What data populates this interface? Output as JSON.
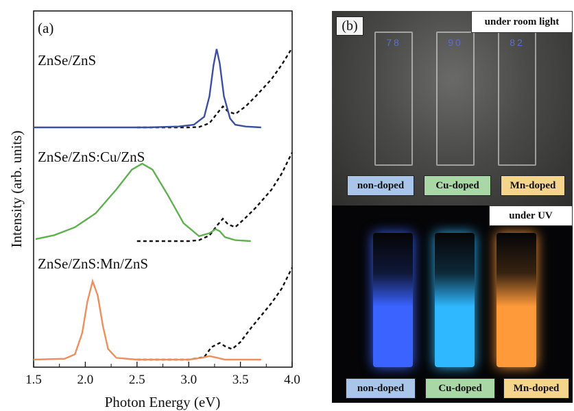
{
  "chart_data": {
    "type": "line",
    "panel_label": "(a)",
    "xlabel": "Photon Energy (eV)",
    "ylabel": "Intensity (arb. units)",
    "xlim": [
      1.5,
      4.0
    ],
    "x_ticks": [
      "1.5",
      "2.0",
      "2.5",
      "3.0",
      "3.5",
      "4.0"
    ],
    "grid": false,
    "samples": [
      {
        "name": "ZnSe/ZnS",
        "color": "#3b4fa3",
        "emission": {
          "x": [
            1.5,
            2.6,
            2.9,
            3.05,
            3.15,
            3.2,
            3.24,
            3.27,
            3.3,
            3.34,
            3.4,
            3.45,
            3.55,
            3.7
          ],
          "y": [
            0,
            0,
            0.01,
            0.03,
            0.12,
            0.35,
            0.7,
            0.88,
            0.72,
            0.35,
            0.1,
            0.03,
            0.01,
            0
          ]
        },
        "absorption": {
          "x": [
            2.5,
            3.0,
            3.1,
            3.2,
            3.28,
            3.33,
            3.38,
            3.45,
            3.55,
            3.65,
            3.8,
            3.9,
            4.0
          ],
          "y": [
            0,
            0,
            0.01,
            0.1,
            0.35,
            0.5,
            0.38,
            0.32,
            0.5,
            0.75,
            1.15,
            1.5,
            1.9
          ]
        }
      },
      {
        "name": "ZnSe/ZnS:Cu/ZnS",
        "color": "#5fb14f",
        "emission": {
          "x": [
            1.52,
            1.7,
            1.9,
            2.1,
            2.3,
            2.45,
            2.55,
            2.65,
            2.8,
            2.95,
            3.1,
            3.2,
            3.26,
            3.3,
            3.35,
            3.45,
            3.6
          ],
          "y": [
            0.02,
            0.06,
            0.14,
            0.28,
            0.52,
            0.72,
            0.78,
            0.72,
            0.46,
            0.18,
            0.05,
            0.08,
            0.12,
            0.1,
            0.04,
            0.01,
            0.0
          ]
        },
        "absorption": {
          "x": [
            2.5,
            3.0,
            3.1,
            3.2,
            3.28,
            3.33,
            3.38,
            3.45,
            3.55,
            3.65,
            3.8,
            3.9,
            4.0
          ],
          "y": [
            0,
            0,
            0.02,
            0.12,
            0.35,
            0.48,
            0.36,
            0.3,
            0.5,
            0.72,
            1.1,
            1.45,
            1.9
          ]
        }
      },
      {
        "name": "ZnSe/ZnS:Mn/ZnS",
        "color": "#ef8d5b",
        "emission": {
          "x": [
            1.5,
            1.8,
            1.9,
            1.97,
            2.02,
            2.07,
            2.12,
            2.17,
            2.22,
            2.3,
            2.5,
            3.0,
            3.12,
            3.2,
            3.28,
            3.35,
            3.7
          ],
          "y": [
            0,
            0.01,
            0.06,
            0.3,
            0.65,
            0.88,
            0.72,
            0.38,
            0.12,
            0.02,
            0.0,
            0.0,
            0.02,
            0.04,
            0.02,
            0,
            0
          ]
        },
        "absorption": {
          "x": [
            2.5,
            3.0,
            3.15,
            3.22,
            3.3,
            3.35,
            3.42,
            3.5,
            3.6,
            3.7,
            3.8,
            3.9,
            4.0
          ],
          "y": [
            0,
            0,
            0.06,
            0.3,
            0.4,
            0.32,
            0.25,
            0.42,
            0.75,
            1.05,
            1.35,
            1.7,
            2.2
          ]
        }
      }
    ]
  },
  "photo": {
    "panel_label": "(b)",
    "top_caption": "under room light",
    "bottom_caption": "under UV",
    "cuvette_numbers": [
      "78",
      "90",
      "82"
    ],
    "sample_tags": [
      {
        "label": "non-doped",
        "color": "#a9c6ea"
      },
      {
        "label": "Cu-doped",
        "color": "#a9d7a6"
      },
      {
        "label": "Mn-doped",
        "color": "#f5d48c"
      }
    ],
    "uv_glow_colors": [
      "#3a63ff",
      "#2fb8ff",
      "#ff9a3a"
    ]
  }
}
